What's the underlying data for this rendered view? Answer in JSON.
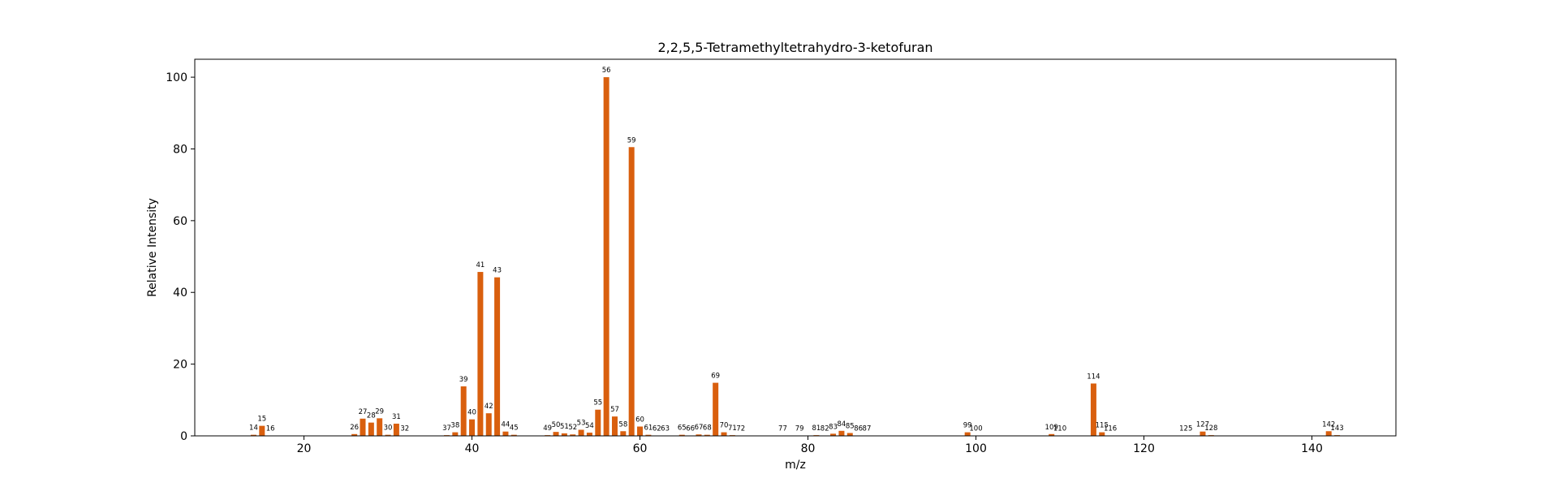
{
  "chart_data": {
    "type": "bar",
    "title": "2,2,5,5-Tetramethyltetrahydro-3-ketofuran",
    "xlabel": "m/z",
    "ylabel": "Relative Intensity",
    "xlim": [
      7,
      150
    ],
    "ylim": [
      0,
      105
    ],
    "xticks": [
      20,
      40,
      60,
      80,
      100,
      120,
      140
    ],
    "yticks": [
      0,
      20,
      40,
      60,
      80,
      100
    ],
    "bar_color": "#d95f0e",
    "grid": false,
    "peaks": [
      {
        "mz": 14,
        "intensity": 0.3
      },
      {
        "mz": 15,
        "intensity": 2.8
      },
      {
        "mz": 16,
        "intensity": 0.1
      },
      {
        "mz": 26,
        "intensity": 0.5
      },
      {
        "mz": 27,
        "intensity": 4.8
      },
      {
        "mz": 28,
        "intensity": 3.7
      },
      {
        "mz": 29,
        "intensity": 4.9
      },
      {
        "mz": 30,
        "intensity": 0.3
      },
      {
        "mz": 31,
        "intensity": 3.4
      },
      {
        "mz": 32,
        "intensity": 0.1
      },
      {
        "mz": 37,
        "intensity": 0.2
      },
      {
        "mz": 38,
        "intensity": 1.0
      },
      {
        "mz": 39,
        "intensity": 13.8
      },
      {
        "mz": 40,
        "intensity": 4.6
      },
      {
        "mz": 41,
        "intensity": 45.7
      },
      {
        "mz": 42,
        "intensity": 6.3
      },
      {
        "mz": 43,
        "intensity": 44.2
      },
      {
        "mz": 44,
        "intensity": 1.2
      },
      {
        "mz": 45,
        "intensity": 0.3
      },
      {
        "mz": 49,
        "intensity": 0.2
      },
      {
        "mz": 50,
        "intensity": 1.1
      },
      {
        "mz": 51,
        "intensity": 0.7
      },
      {
        "mz": 52,
        "intensity": 0.4
      },
      {
        "mz": 53,
        "intensity": 1.7
      },
      {
        "mz": 54,
        "intensity": 0.9
      },
      {
        "mz": 55,
        "intensity": 7.3
      },
      {
        "mz": 56,
        "intensity": 100.0
      },
      {
        "mz": 57,
        "intensity": 5.4
      },
      {
        "mz": 58,
        "intensity": 1.3
      },
      {
        "mz": 59,
        "intensity": 80.5
      },
      {
        "mz": 60,
        "intensity": 2.6
      },
      {
        "mz": 61,
        "intensity": 0.3
      },
      {
        "mz": 62,
        "intensity": 0.1
      },
      {
        "mz": 63,
        "intensity": 0.1
      },
      {
        "mz": 65,
        "intensity": 0.3
      },
      {
        "mz": 66,
        "intensity": 0.1
      },
      {
        "mz": 67,
        "intensity": 0.4
      },
      {
        "mz": 68,
        "intensity": 0.3
      },
      {
        "mz": 69,
        "intensity": 14.8
      },
      {
        "mz": 70,
        "intensity": 1.0
      },
      {
        "mz": 71,
        "intensity": 0.2
      },
      {
        "mz": 72,
        "intensity": 0.1
      },
      {
        "mz": 77,
        "intensity": 0.1
      },
      {
        "mz": 79,
        "intensity": 0.1
      },
      {
        "mz": 81,
        "intensity": 0.2
      },
      {
        "mz": 82,
        "intensity": 0.1
      },
      {
        "mz": 83,
        "intensity": 0.6
      },
      {
        "mz": 84,
        "intensity": 1.4
      },
      {
        "mz": 85,
        "intensity": 0.8
      },
      {
        "mz": 86,
        "intensity": 0.1
      },
      {
        "mz": 87,
        "intensity": 0.1
      },
      {
        "mz": 99,
        "intensity": 1.0
      },
      {
        "mz": 100,
        "intensity": 0.1
      },
      {
        "mz": 109,
        "intensity": 0.5
      },
      {
        "mz": 110,
        "intensity": 0.1
      },
      {
        "mz": 114,
        "intensity": 14.6
      },
      {
        "mz": 115,
        "intensity": 1.0
      },
      {
        "mz": 116,
        "intensity": 0.1
      },
      {
        "mz": 125,
        "intensity": 0.1
      },
      {
        "mz": 127,
        "intensity": 1.2
      },
      {
        "mz": 128,
        "intensity": 0.2
      },
      {
        "mz": 142,
        "intensity": 1.3
      },
      {
        "mz": 143,
        "intensity": 0.2
      }
    ]
  }
}
